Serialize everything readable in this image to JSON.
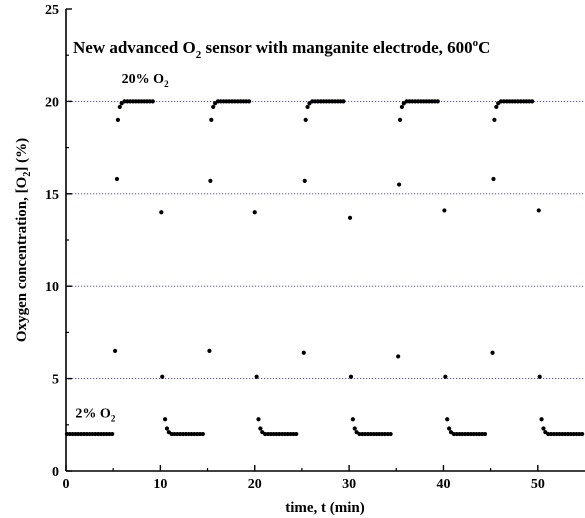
{
  "chart_data": {
    "type": "scatter",
    "title": {
      "main": "New advanced O",
      "sub": "2",
      "rest": " sensor with manganite electrode, 600",
      "sup": "o",
      "end": "C"
    },
    "xlabel": "time, t (min)",
    "ylabel": {
      "pre": "Oxygen concentration, [O",
      "sub": "2",
      "post": "] (%)"
    },
    "xlim": [
      0,
      55
    ],
    "ylim": [
      0,
      25
    ],
    "x_ticks": [
      0,
      10,
      20,
      30,
      40,
      50
    ],
    "y_ticks": [
      0,
      5,
      10,
      15,
      20,
      25
    ],
    "gridlines_y": [
      5,
      10,
      15,
      20
    ],
    "grid_color": "#3a3ad0",
    "marker_color": "#000000",
    "annotations": [
      {
        "id": "high",
        "text": "20% O",
        "sub": "2",
        "x": 5.9,
        "y": 21.0
      },
      {
        "id": "low",
        "text": "2% O",
        "sub": "2",
        "x": 1.0,
        "y": 2.9
      }
    ],
    "series": [
      {
        "points": [
          [
            0.1,
            2.0
          ],
          [
            0.4,
            2.0
          ],
          [
            0.7,
            2.0
          ],
          [
            1.0,
            2.0
          ],
          [
            1.3,
            2.0
          ],
          [
            1.6,
            2.0
          ],
          [
            1.9,
            2.0
          ],
          [
            2.2,
            2.0
          ],
          [
            2.5,
            2.0
          ],
          [
            2.8,
            2.0
          ],
          [
            3.1,
            2.0
          ],
          [
            3.4,
            2.0
          ],
          [
            3.7,
            2.0
          ],
          [
            4.0,
            2.0
          ],
          [
            4.3,
            2.0
          ],
          [
            4.6,
            2.0
          ],
          [
            4.9,
            2.0
          ],
          [
            5.2,
            6.5
          ],
          [
            5.4,
            15.8
          ],
          [
            5.5,
            19.0
          ],
          [
            5.7,
            19.7
          ],
          [
            5.9,
            19.9
          ],
          [
            6.2,
            20.0
          ],
          [
            6.5,
            20.0
          ],
          [
            6.8,
            20.0
          ],
          [
            7.1,
            20.0
          ],
          [
            7.4,
            20.0
          ],
          [
            7.7,
            20.0
          ],
          [
            8.0,
            20.0
          ],
          [
            8.3,
            20.0
          ],
          [
            8.6,
            20.0
          ],
          [
            8.9,
            20.0
          ],
          [
            9.2,
            20.0
          ],
          [
            10.1,
            14.0
          ],
          [
            10.2,
            5.1
          ],
          [
            10.5,
            2.8
          ],
          [
            10.7,
            2.3
          ],
          [
            10.9,
            2.1
          ],
          [
            11.2,
            2.0
          ],
          [
            11.5,
            2.0
          ],
          [
            11.8,
            2.0
          ],
          [
            12.1,
            2.0
          ],
          [
            12.4,
            2.0
          ],
          [
            12.7,
            2.0
          ],
          [
            13.0,
            2.0
          ],
          [
            13.3,
            2.0
          ],
          [
            13.6,
            2.0
          ],
          [
            13.9,
            2.0
          ],
          [
            14.2,
            2.0
          ],
          [
            14.5,
            2.0
          ],
          [
            15.2,
            6.5
          ],
          [
            15.3,
            15.7
          ],
          [
            15.4,
            19.0
          ],
          [
            15.6,
            19.7
          ],
          [
            15.8,
            19.9
          ],
          [
            16.1,
            20.0
          ],
          [
            16.4,
            20.0
          ],
          [
            16.7,
            20.0
          ],
          [
            17.0,
            20.0
          ],
          [
            17.3,
            20.0
          ],
          [
            17.6,
            20.0
          ],
          [
            17.9,
            20.0
          ],
          [
            18.2,
            20.0
          ],
          [
            18.5,
            20.0
          ],
          [
            18.8,
            20.0
          ],
          [
            19.1,
            20.0
          ],
          [
            19.4,
            20.0
          ],
          [
            20.0,
            14.0
          ],
          [
            20.2,
            5.1
          ],
          [
            20.4,
            2.8
          ],
          [
            20.6,
            2.3
          ],
          [
            20.8,
            2.1
          ],
          [
            21.1,
            2.0
          ],
          [
            21.4,
            2.0
          ],
          [
            21.7,
            2.0
          ],
          [
            22.0,
            2.0
          ],
          [
            22.3,
            2.0
          ],
          [
            22.6,
            2.0
          ],
          [
            22.9,
            2.0
          ],
          [
            23.2,
            2.0
          ],
          [
            23.5,
            2.0
          ],
          [
            23.8,
            2.0
          ],
          [
            24.1,
            2.0
          ],
          [
            24.4,
            2.0
          ],
          [
            25.2,
            6.4
          ],
          [
            25.3,
            15.7
          ],
          [
            25.4,
            19.0
          ],
          [
            25.6,
            19.7
          ],
          [
            25.8,
            19.9
          ],
          [
            26.1,
            20.0
          ],
          [
            26.4,
            20.0
          ],
          [
            26.7,
            20.0
          ],
          [
            27.0,
            20.0
          ],
          [
            27.3,
            20.0
          ],
          [
            27.6,
            20.0
          ],
          [
            27.9,
            20.0
          ],
          [
            28.2,
            20.0
          ],
          [
            28.5,
            20.0
          ],
          [
            28.8,
            20.0
          ],
          [
            29.1,
            20.0
          ],
          [
            29.4,
            20.0
          ],
          [
            30.1,
            13.7
          ],
          [
            30.2,
            5.1
          ],
          [
            30.4,
            2.8
          ],
          [
            30.6,
            2.3
          ],
          [
            30.8,
            2.1
          ],
          [
            31.1,
            2.0
          ],
          [
            31.4,
            2.0
          ],
          [
            31.7,
            2.0
          ],
          [
            32.0,
            2.0
          ],
          [
            32.3,
            2.0
          ],
          [
            32.6,
            2.0
          ],
          [
            32.9,
            2.0
          ],
          [
            33.2,
            2.0
          ],
          [
            33.5,
            2.0
          ],
          [
            33.8,
            2.0
          ],
          [
            34.1,
            2.0
          ],
          [
            34.4,
            2.0
          ],
          [
            35.2,
            6.2
          ],
          [
            35.3,
            15.5
          ],
          [
            35.4,
            19.0
          ],
          [
            35.6,
            19.7
          ],
          [
            35.8,
            19.9
          ],
          [
            36.1,
            20.0
          ],
          [
            36.4,
            20.0
          ],
          [
            36.7,
            20.0
          ],
          [
            37.0,
            20.0
          ],
          [
            37.3,
            20.0
          ],
          [
            37.6,
            20.0
          ],
          [
            37.9,
            20.0
          ],
          [
            38.2,
            20.0
          ],
          [
            38.5,
            20.0
          ],
          [
            38.8,
            20.0
          ],
          [
            39.1,
            20.0
          ],
          [
            39.4,
            20.0
          ],
          [
            40.1,
            14.1
          ],
          [
            40.2,
            5.1
          ],
          [
            40.4,
            2.8
          ],
          [
            40.6,
            2.3
          ],
          [
            40.8,
            2.1
          ],
          [
            41.1,
            2.0
          ],
          [
            41.4,
            2.0
          ],
          [
            41.7,
            2.0
          ],
          [
            42.0,
            2.0
          ],
          [
            42.3,
            2.0
          ],
          [
            42.6,
            2.0
          ],
          [
            42.9,
            2.0
          ],
          [
            43.2,
            2.0
          ],
          [
            43.5,
            2.0
          ],
          [
            43.8,
            2.0
          ],
          [
            44.1,
            2.0
          ],
          [
            44.4,
            2.0
          ],
          [
            45.2,
            6.4
          ],
          [
            45.3,
            15.8
          ],
          [
            45.4,
            19.0
          ],
          [
            45.6,
            19.7
          ],
          [
            45.8,
            19.9
          ],
          [
            46.1,
            20.0
          ],
          [
            46.4,
            20.0
          ],
          [
            46.7,
            20.0
          ],
          [
            47.0,
            20.0
          ],
          [
            47.3,
            20.0
          ],
          [
            47.6,
            20.0
          ],
          [
            47.9,
            20.0
          ],
          [
            48.2,
            20.0
          ],
          [
            48.5,
            20.0
          ],
          [
            48.8,
            20.0
          ],
          [
            49.1,
            20.0
          ],
          [
            49.4,
            20.0
          ],
          [
            50.1,
            14.1
          ],
          [
            50.2,
            5.1
          ],
          [
            50.4,
            2.8
          ],
          [
            50.6,
            2.3
          ],
          [
            50.8,
            2.1
          ],
          [
            51.1,
            2.0
          ],
          [
            51.4,
            2.0
          ],
          [
            51.7,
            2.0
          ],
          [
            52.0,
            2.0
          ],
          [
            52.3,
            2.0
          ],
          [
            52.6,
            2.0
          ],
          [
            52.9,
            2.0
          ],
          [
            53.2,
            2.0
          ],
          [
            53.5,
            2.0
          ],
          [
            53.8,
            2.0
          ],
          [
            54.1,
            2.0
          ],
          [
            54.4,
            2.0
          ],
          [
            54.7,
            2.0
          ]
        ]
      }
    ]
  }
}
